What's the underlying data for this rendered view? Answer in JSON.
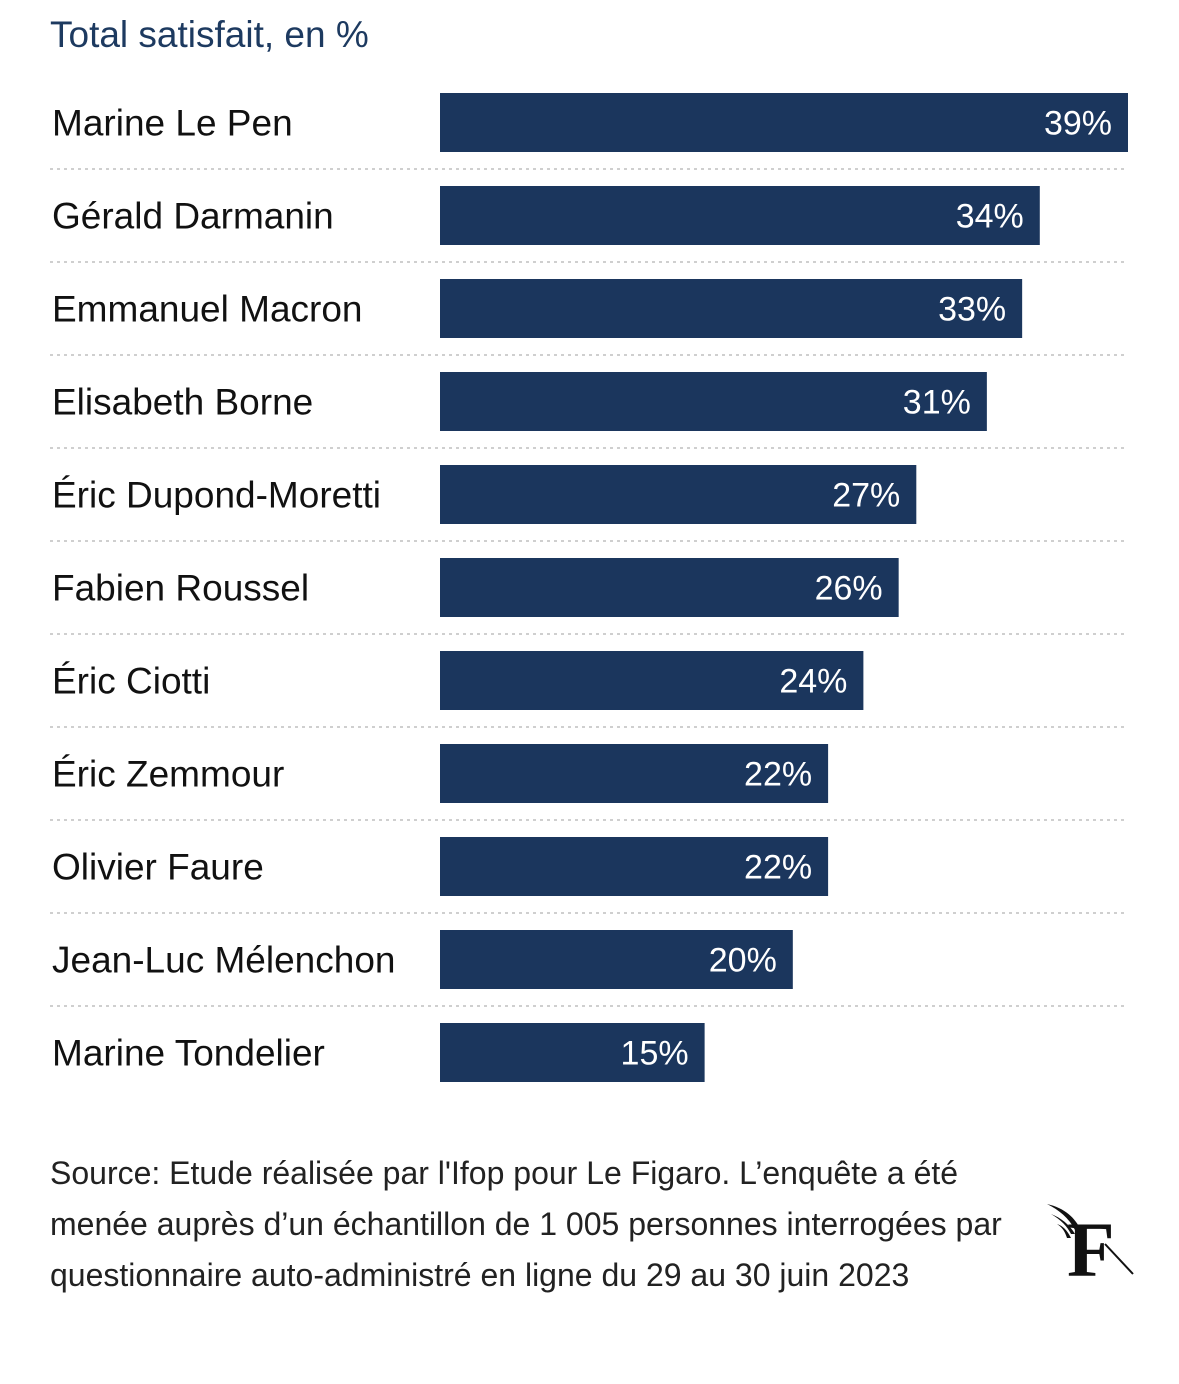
{
  "chart_data": {
    "type": "bar",
    "orientation": "horizontal",
    "title": "Total satisfait, en %",
    "categories": [
      "Marine Le Pen",
      "Gérald Darmanin",
      "Emmanuel Macron",
      "Elisabeth Borne",
      "Éric Dupond-Moretti",
      "Fabien Roussel",
      "Éric Ciotti",
      "Éric Zemmour",
      "Olivier Faure",
      "Jean-Luc Mélenchon",
      "Marine Tondelier"
    ],
    "values": [
      39,
      34,
      33,
      31,
      27,
      26,
      24,
      22,
      22,
      20,
      15
    ],
    "value_labels": [
      "39%",
      "34%",
      "33%",
      "31%",
      "27%",
      "26%",
      "24%",
      "22%",
      "22%",
      "20%",
      "15%"
    ],
    "xlim": [
      0,
      39
    ],
    "bar_color": "#1b365d",
    "grid": false
  },
  "source": "Source: Etude réalisée par l'Ifop pour Le Figaro. L’enquête a été menée auprès d’un échantillon de 1 005 personnes interrogées par questionnaire auto-administré en ligne du 29 au 30 juin 2023",
  "logo": {
    "icon": "le-figaro-f-logo",
    "letter": "F"
  }
}
